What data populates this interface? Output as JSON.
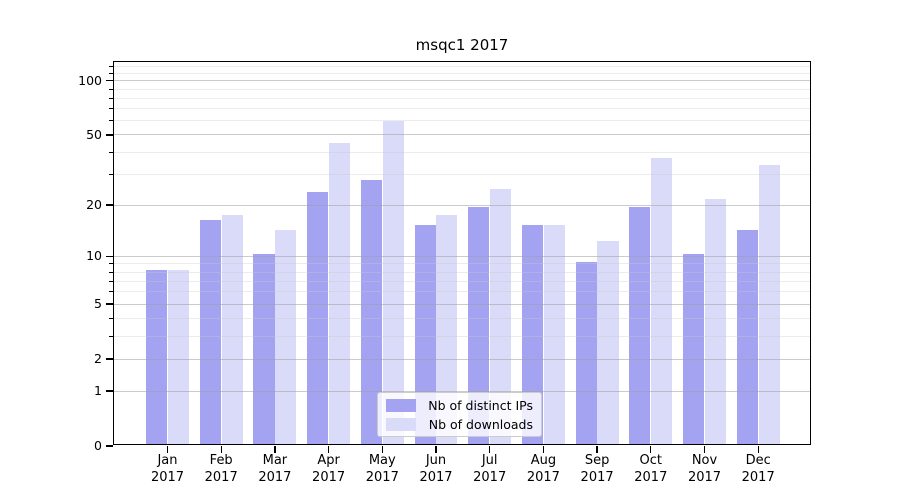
{
  "chart_data": {
    "type": "bar",
    "title": "msqc1 2017",
    "categories": [
      "Jan",
      "Feb",
      "Mar",
      "Apr",
      "May",
      "Jun",
      "Jul",
      "Aug",
      "Sep",
      "Oct",
      "Nov",
      "Dec"
    ],
    "category_year": "2017",
    "series": [
      {
        "name": "Nb of distinct IPs",
        "color": "#a3a3f2",
        "values": [
          8,
          16,
          10,
          23,
          27,
          15,
          19,
          15,
          9,
          19,
          10,
          14
        ]
      },
      {
        "name": "Nb of downloads",
        "color": "#dadaf9",
        "values": [
          8,
          17,
          14,
          44,
          58,
          17,
          24,
          15,
          12,
          36,
          21,
          33
        ]
      }
    ],
    "xlabel": "",
    "ylabel": "",
    "yscale": "log1p",
    "ylim": [
      0,
      127
    ],
    "yticks_major": [
      0,
      1,
      2,
      5,
      10,
      20,
      50,
      100
    ],
    "yticks_minor": [
      3,
      4,
      6,
      7,
      8,
      9,
      30,
      40,
      60,
      70,
      80,
      90,
      110,
      120
    ],
    "grid": "on",
    "legend_position": "lower center"
  }
}
